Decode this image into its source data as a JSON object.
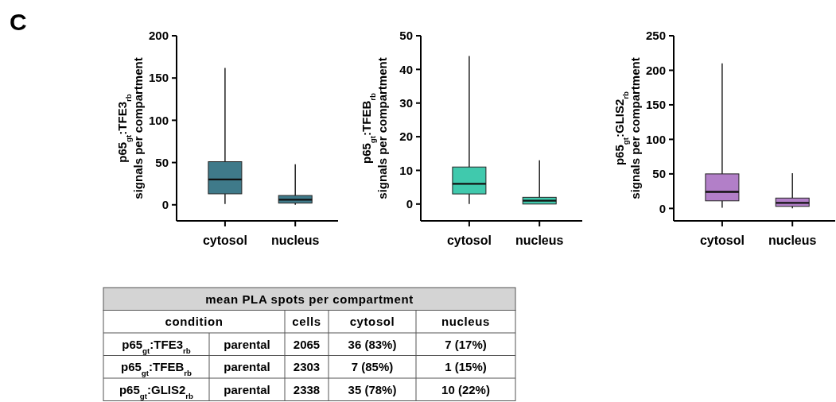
{
  "chart_data": [
    {
      "type": "box",
      "ylabel": "p65$_{gt}$:TFE3$_{rb}$\nsignals per compartment",
      "categories": [
        "cytosol",
        "nucleus"
      ],
      "ylim": [
        -19,
        200
      ],
      "yticks": [
        0,
        50,
        100,
        150,
        200
      ],
      "grid": false,
      "annotations": [
        "C"
      ],
      "series": [
        {
          "color": "#3f7a8a",
          "boxes": [
            {
              "low": 1,
              "q1": 13,
              "median": 30,
              "q3": 51,
              "high": 162
            },
            {
              "low": 0,
              "q1": 2,
              "median": 6,
              "q3": 11,
              "high": 48
            }
          ]
        }
      ]
    },
    {
      "type": "box",
      "ylabel": "p65$_{gt}$:TFEB$_{rb}$\nsignals per compartment",
      "categories": [
        "cytosol",
        "nucleus"
      ],
      "ylim": [
        -5,
        50
      ],
      "yticks": [
        0,
        10,
        20,
        30,
        40,
        50
      ],
      "grid": false,
      "series": [
        {
          "color": "#40c9ad",
          "boxes": [
            {
              "low": 0,
              "q1": 3,
              "median": 6,
              "q3": 11,
              "high": 44
            },
            {
              "low": 0,
              "q1": 0,
              "median": 1,
              "q3": 2,
              "high": 13
            }
          ]
        }
      ]
    },
    {
      "type": "box",
      "ylabel": "p65$_{gt}$:GLIS2$_{rb}$\nsignals per compartment",
      "categories": [
        "cytosol",
        "nucleus"
      ],
      "ylim": [
        -18,
        250
      ],
      "yticks": [
        0,
        50,
        100,
        150,
        200,
        250
      ],
      "grid": false,
      "series": [
        {
          "color": "#b27fc8",
          "boxes": [
            {
              "low": 1,
              "q1": 11,
              "median": 24,
              "q3": 50,
              "high": 210
            },
            {
              "low": 0,
              "q1": 3,
              "median": 8,
              "q3": 15,
              "high": 51
            }
          ]
        }
      ]
    },
    {
      "type": "other",
      "data_labels": true,
      "title": "mean PLA spots per compartment",
      "xlabel": "condition",
      "categories": [
        "p65$_{gt}$:TFE3$_{rb}$",
        "p65$_{gt}$:TFEB$_{rb}$",
        "p65$_{gt}$:GLIS2$_{rb}$"
      ],
      "series": [
        {
          "values": [
            null,
            null,
            null
          ],
          "value_labels": [
            "parental",
            "parental",
            "parental"
          ]
        },
        {
          "name": "cells",
          "values": [
            2065,
            2303,
            2338
          ]
        },
        {
          "name": "cytosol",
          "values": [
            36,
            7,
            35
          ],
          "value_labels": [
            "36 (83%)",
            "7 (85%)",
            "35 (78%)"
          ]
        },
        {
          "name": "nucleus",
          "values": [
            7,
            1,
            10
          ],
          "value_labels": [
            "7 (17%)",
            "1 (15%)",
            "10 (22%)"
          ]
        }
      ]
    }
  ]
}
